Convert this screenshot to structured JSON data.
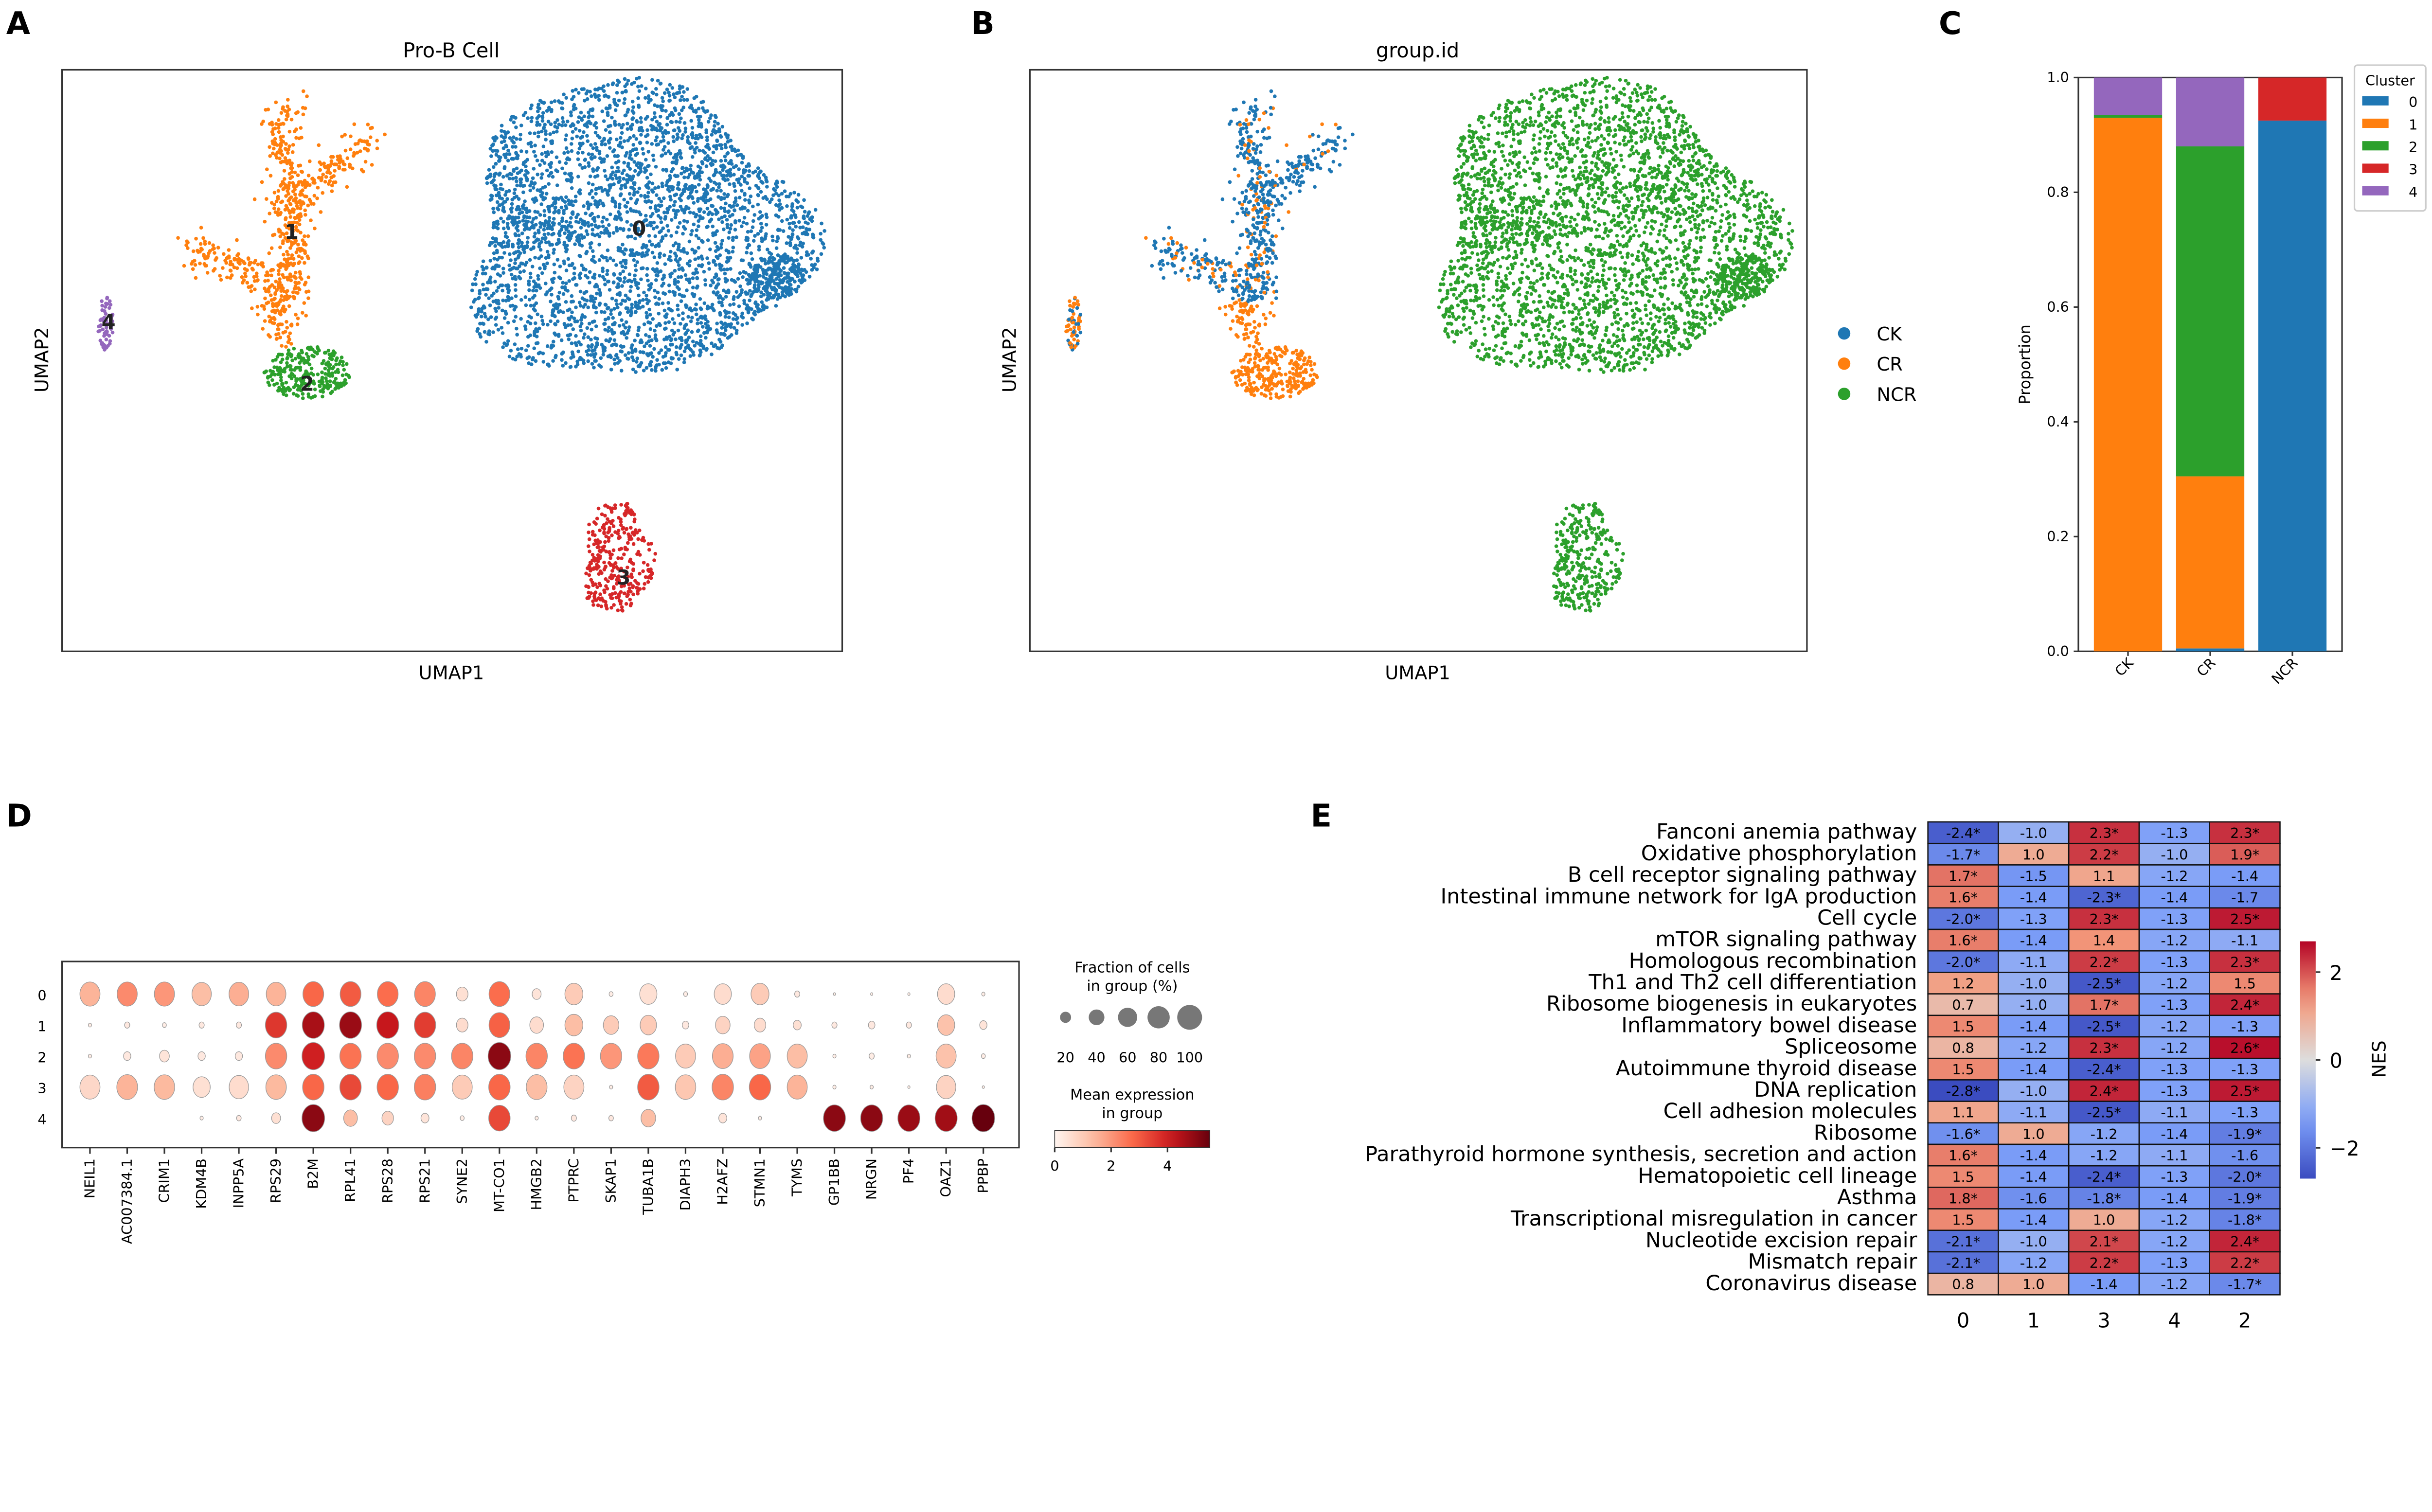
{
  "panels": {
    "a": "A",
    "b": "B",
    "c": "C",
    "d": "D",
    "e": "E"
  },
  "panel_a": {
    "title": "Pro-B Cell",
    "xlabel": "UMAP1",
    "ylabel": "UMAP2",
    "cluster_labels": [
      "0",
      "1",
      "2",
      "3",
      "4"
    ]
  },
  "panel_b": {
    "title": "group.id",
    "xlabel": "UMAP1",
    "ylabel": "UMAP2",
    "legend": [
      "CK",
      "CR",
      "NCR"
    ]
  },
  "colors": {
    "c0": "#1f77b4",
    "c1": "#ff7f0e",
    "c2": "#2ca02c",
    "c3": "#d62728",
    "c4": "#9467bd"
  },
  "chart_data": [
    {
      "type": "scatter",
      "title": "Pro-B Cell",
      "xlabel": "UMAP1",
      "ylabel": "UMAP2",
      "series": [
        "0",
        "1",
        "2",
        "3",
        "4"
      ]
    },
    {
      "type": "scatter",
      "title": "group.id",
      "xlabel": "UMAP1",
      "ylabel": "UMAP2",
      "series": [
        "CK",
        "CR",
        "NCR"
      ]
    },
    {
      "type": "bar",
      "stacked": true,
      "title": "",
      "xlabel": "",
      "ylabel": "Proportion",
      "ylim": [
        0,
        1.0
      ],
      "yticks": [
        "0.0",
        "0.2",
        "0.4",
        "0.6",
        "0.8",
        "1.0"
      ],
      "categories": [
        "CK",
        "CR",
        "NCR"
      ],
      "legend_title": "Cluster",
      "legend_position": "right",
      "series": [
        {
          "name": "0",
          "values": [
            0.0,
            0.005,
            0.925
          ]
        },
        {
          "name": "1",
          "values": [
            0.93,
            0.3,
            0.0
          ]
        },
        {
          "name": "2",
          "values": [
            0.005,
            0.575,
            0.0
          ]
        },
        {
          "name": "3",
          "values": [
            0.0,
            0.0,
            0.075
          ]
        },
        {
          "name": "4",
          "values": [
            0.065,
            0.12,
            0.0
          ]
        }
      ]
    },
    {
      "type": "scatter",
      "subtype": "dotplot",
      "rows": [
        "0",
        "1",
        "2",
        "3",
        "4"
      ],
      "genes": [
        "NEIL1",
        "AC007384.1",
        "CRIM1",
        "KDM4B",
        "INPP5A",
        "RPS29",
        "B2M",
        "RPL41",
        "RPS28",
        "RPS21",
        "SYNE2",
        "MT-CO1",
        "HMGB2",
        "PTPRC",
        "SKAP1",
        "TUBA1B",
        "DIAPH3",
        "H2AFZ",
        "STMN1",
        "TYMS",
        "GP1BB",
        "NRGN",
        "PF4",
        "OAZ1",
        "PPBP"
      ],
      "fraction": [
        [
          75,
          75,
          75,
          70,
          72,
          72,
          80,
          80,
          80,
          80,
          25,
          80,
          15,
          60,
          3,
          55,
          3,
          55,
          60,
          5,
          1,
          1,
          1,
          55,
          2
        ],
        [
          2,
          5,
          3,
          5,
          5,
          85,
          90,
          90,
          90,
          85,
          25,
          80,
          35,
          60,
          45,
          50,
          8,
          40,
          25,
          12,
          5,
          8,
          5,
          55,
          10
        ],
        [
          2,
          10,
          18,
          10,
          10,
          85,
          95,
          85,
          85,
          85,
          85,
          95,
          85,
          85,
          85,
          85,
          75,
          80,
          80,
          75,
          2,
          5,
          2,
          75,
          3
        ],
        [
          75,
          80,
          78,
          55,
          70,
          78,
          85,
          85,
          85,
          85,
          75,
          85,
          80,
          75,
          2,
          85,
          78,
          85,
          85,
          75,
          2,
          2,
          1,
          70,
          1
        ],
        [
          0,
          0,
          0,
          2,
          4,
          15,
          95,
          35,
          25,
          12,
          3,
          85,
          2,
          5,
          4,
          40,
          0,
          12,
          2,
          0,
          90,
          90,
          90,
          90,
          95
        ]
      ],
      "expression": [
        [
          1.5,
          2.2,
          2.0,
          1.3,
          1.6,
          1.5,
          2.8,
          3.0,
          2.7,
          2.3,
          0.5,
          2.7,
          0.4,
          1.0,
          0.2,
          0.5,
          0.2,
          0.6,
          1.0,
          0.3,
          0.2,
          0.2,
          0.2,
          0.6,
          0.2
        ],
        [
          0.2,
          0.3,
          0.2,
          0.3,
          0.3,
          3.6,
          4.6,
          4.8,
          4.2,
          3.5,
          0.6,
          2.9,
          0.6,
          1.3,
          1.0,
          1.0,
          0.3,
          0.8,
          0.6,
          0.5,
          0.3,
          0.3,
          0.3,
          1.2,
          0.4
        ],
        [
          0.2,
          0.3,
          0.4,
          0.3,
          0.3,
          2.2,
          4.0,
          2.6,
          2.2,
          2.2,
          2.3,
          5.0,
          2.3,
          2.6,
          2.0,
          2.5,
          1.0,
          1.6,
          1.8,
          1.3,
          0.2,
          0.2,
          0.2,
          1.2,
          0.2
        ],
        [
          0.7,
          1.5,
          1.4,
          0.5,
          0.6,
          1.4,
          2.8,
          3.3,
          2.8,
          2.4,
          1.0,
          2.8,
          1.3,
          0.8,
          0.2,
          3.0,
          1.1,
          2.3,
          2.8,
          1.5,
          0.2,
          0.2,
          0.2,
          0.8,
          0.2
        ],
        [
          0,
          0,
          0,
          0.2,
          0.3,
          0.5,
          5.0,
          1.3,
          0.8,
          0.4,
          0.2,
          3.3,
          0.2,
          0.3,
          0.3,
          1.3,
          0,
          0.4,
          0.2,
          0,
          5.0,
          5.0,
          4.8,
          4.7,
          5.5
        ]
      ],
      "expr_max": 5.5,
      "size_legend_title": [
        "Fraction of cells",
        "in group (%)"
      ],
      "size_legend": [
        "20",
        "40",
        "60",
        "80",
        "100"
      ],
      "color_legend_title": [
        "Mean expression",
        "in group"
      ],
      "color_ticks": [
        "0",
        "2",
        "4"
      ]
    },
    {
      "type": "heatmap",
      "colorbar_label": "NES",
      "colorbar_ticks": [
        "2",
        "0",
        "−2"
      ],
      "vlim": [
        -2.7,
        2.7
      ],
      "columns": [
        "0",
        "1",
        "3",
        "4",
        "2"
      ],
      "rows": [
        "Fanconi anemia pathway",
        "Oxidative phosphorylation",
        "B cell receptor signaling pathway",
        "Intestinal immune network for IgA production",
        "Cell cycle",
        "mTOR signaling pathway",
        "Homologous recombination",
        "Th1 and Th2 cell differentiation",
        "Ribosome biogenesis in eukaryotes",
        "Inflammatory bowel disease",
        "Spliceosome",
        "Autoimmune thyroid disease",
        "DNA replication",
        "Cell adhesion molecules",
        "Ribosome",
        "Parathyroid hormone synthesis, secretion and action",
        "Hematopoietic cell lineage",
        "Asthma",
        "Transcriptional misregulation in cancer",
        "Nucleotide excision repair",
        "Mismatch repair",
        "Coronavirus disease"
      ],
      "cells": [
        [
          "-2.4*",
          "-1.0",
          "2.3*",
          "-1.3",
          "2.3*"
        ],
        [
          "-1.7*",
          "1.0",
          "2.2*",
          "-1.0",
          "1.9*"
        ],
        [
          "1.7*",
          "-1.5",
          "1.1",
          "-1.2",
          "-1.4"
        ],
        [
          "1.6*",
          "-1.4",
          "-2.3*",
          "-1.4",
          "-1.7"
        ],
        [
          "-2.0*",
          "-1.3",
          "2.3*",
          "-1.3",
          "2.5*"
        ],
        [
          "1.6*",
          "-1.4",
          "1.4",
          "-1.2",
          "-1.1"
        ],
        [
          "-2.0*",
          "-1.1",
          "2.2*",
          "-1.3",
          "2.3*"
        ],
        [
          "1.2",
          "-1.0",
          "-2.5*",
          "-1.2",
          "1.5"
        ],
        [
          "0.7",
          "-1.0",
          "1.7*",
          "-1.3",
          "2.4*"
        ],
        [
          "1.5",
          "-1.4",
          "-2.5*",
          "-1.2",
          "-1.3"
        ],
        [
          "0.8",
          "-1.2",
          "2.3*",
          "-1.2",
          "2.6*"
        ],
        [
          "1.5",
          "-1.4",
          "-2.4*",
          "-1.3",
          "-1.3"
        ],
        [
          "-2.8*",
          "-1.0",
          "2.4*",
          "-1.3",
          "2.5*"
        ],
        [
          "1.1",
          "-1.1",
          "-2.5*",
          "-1.1",
          "-1.3"
        ],
        [
          "-1.6*",
          "1.0",
          "-1.2",
          "-1.4",
          "-1.9*"
        ],
        [
          "1.6*",
          "-1.4",
          "-1.2",
          "-1.1",
          "-1.6"
        ],
        [
          "1.5",
          "-1.4",
          "-2.4*",
          "-1.3",
          "-2.0*"
        ],
        [
          "1.8*",
          "-1.6",
          "-1.8*",
          "-1.4",
          "-1.9*"
        ],
        [
          "1.5",
          "-1.4",
          "1.0",
          "-1.2",
          "-1.8*"
        ],
        [
          "-2.1*",
          "-1.0",
          "2.1*",
          "-1.2",
          "2.4*"
        ],
        [
          "-2.1*",
          "-1.2",
          "2.2*",
          "-1.3",
          "2.2*"
        ],
        [
          "0.8",
          "1.0",
          "-1.4",
          "-1.2",
          "-1.7*"
        ]
      ]
    }
  ]
}
